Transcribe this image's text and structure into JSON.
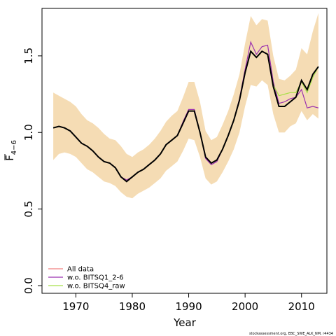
{
  "chart_data": {
    "type": "line",
    "xlabel": "Year",
    "ylabel": "F̅ 4−6",
    "ylabel_main": "F",
    "ylabel_sub": "4−6",
    "xlim": [
      1964,
      2014.5
    ],
    "ylim": [
      -0.05,
      1.81
    ],
    "x_ticks": [
      1970,
      1980,
      1990,
      2000,
      2010
    ],
    "x_tick_labels": [
      "1970",
      "1980",
      "1990",
      "2000",
      "2010"
    ],
    "y_ticks": [
      0.0,
      0.5,
      1.0,
      1.5
    ],
    "y_tick_labels": [
      "0.0",
      "0.5",
      "1.0",
      "1.5"
    ],
    "grid": false,
    "legend_position": "bottom-left",
    "footnote": "stockassessment.org, EBC_SWE_ALK_NM, r4434",
    "colors": {
      "band": "#f5dcb4",
      "main": "#000000",
      "all_data": "#f08080",
      "bitsq1": "#9b30b0",
      "bitsq4": "#a8e04a"
    },
    "x": [
      1966,
      1967,
      1968,
      1969,
      1970,
      1971,
      1972,
      1973,
      1974,
      1975,
      1976,
      1977,
      1978,
      1979,
      1980,
      1981,
      1982,
      1983,
      1984,
      1985,
      1986,
      1987,
      1988,
      1989,
      1990,
      1991,
      1992,
      1993,
      1994,
      1995,
      1996,
      1997,
      1998,
      1999,
      2000,
      2001,
      2002,
      2003,
      2004,
      2005,
      2006,
      2007,
      2008,
      2009,
      2010,
      2011,
      2012,
      2013
    ],
    "band_upper": [
      1.26,
      1.24,
      1.22,
      1.2,
      1.17,
      1.12,
      1.08,
      1.06,
      1.03,
      0.99,
      0.96,
      0.95,
      0.91,
      0.86,
      0.84,
      0.87,
      0.89,
      0.92,
      0.96,
      1.01,
      1.07,
      1.11,
      1.14,
      1.23,
      1.33,
      1.33,
      1.2,
      1.01,
      0.95,
      0.97,
      1.05,
      1.14,
      1.25,
      1.38,
      1.58,
      1.76,
      1.7,
      1.74,
      1.73,
      1.5,
      1.35,
      1.34,
      1.37,
      1.41,
      1.55,
      1.51,
      1.66,
      1.78
    ],
    "band_lower": [
      0.82,
      0.86,
      0.87,
      0.86,
      0.84,
      0.8,
      0.76,
      0.74,
      0.71,
      0.68,
      0.67,
      0.65,
      0.61,
      0.58,
      0.57,
      0.6,
      0.62,
      0.64,
      0.67,
      0.7,
      0.75,
      0.78,
      0.81,
      0.88,
      0.96,
      0.95,
      0.84,
      0.7,
      0.66,
      0.68,
      0.74,
      0.81,
      0.89,
      1.0,
      1.17,
      1.31,
      1.3,
      1.34,
      1.31,
      1.12,
      1.0,
      1.0,
      1.04,
      1.06,
      1.14,
      1.08,
      1.12,
      1.09
    ],
    "series": [
      {
        "name": "All data",
        "color": "#f08080",
        "values": [
          1.03,
          1.04,
          1.03,
          1.01,
          0.97,
          0.93,
          0.91,
          0.88,
          0.84,
          0.81,
          0.8,
          0.77,
          0.71,
          0.68,
          0.71,
          0.74,
          0.76,
          0.79,
          0.82,
          0.86,
          0.92,
          0.95,
          0.98,
          1.06,
          1.14,
          1.14,
          1.0,
          0.84,
          0.8,
          0.82,
          0.89,
          0.98,
          1.08,
          1.21,
          1.39,
          1.53,
          1.49,
          1.53,
          1.51,
          1.3,
          1.17,
          1.17,
          1.2,
          1.23,
          1.34,
          1.28,
          1.38,
          1.43
        ]
      },
      {
        "name": "w.o. BITSQ1_2-6",
        "color": "#9b30b0",
        "values": [
          1.03,
          1.04,
          1.03,
          1.01,
          0.97,
          0.93,
          0.91,
          0.88,
          0.84,
          0.81,
          0.8,
          0.77,
          0.71,
          0.69,
          0.71,
          0.74,
          0.76,
          0.79,
          0.82,
          0.86,
          0.92,
          0.95,
          0.98,
          1.07,
          1.15,
          1.15,
          1.0,
          0.83,
          0.79,
          0.81,
          0.89,
          0.98,
          1.08,
          1.22,
          1.41,
          1.59,
          1.51,
          1.56,
          1.57,
          1.33,
          1.19,
          1.2,
          1.22,
          1.23,
          1.28,
          1.16,
          1.17,
          1.16
        ]
      },
      {
        "name": "w.o. BITSQ4_raw",
        "color": "#a8e04a",
        "values": [
          1.03,
          1.04,
          1.03,
          1.01,
          0.97,
          0.93,
          0.91,
          0.88,
          0.84,
          0.81,
          0.8,
          0.77,
          0.71,
          0.68,
          0.71,
          0.74,
          0.76,
          0.79,
          0.82,
          0.86,
          0.92,
          0.95,
          0.98,
          1.06,
          1.14,
          1.14,
          1.0,
          0.84,
          0.8,
          0.82,
          0.89,
          0.98,
          1.08,
          1.21,
          1.39,
          1.53,
          1.49,
          1.53,
          1.51,
          1.31,
          1.24,
          1.25,
          1.26,
          1.26,
          1.33,
          1.26,
          1.36,
          1.43
        ]
      }
    ]
  }
}
